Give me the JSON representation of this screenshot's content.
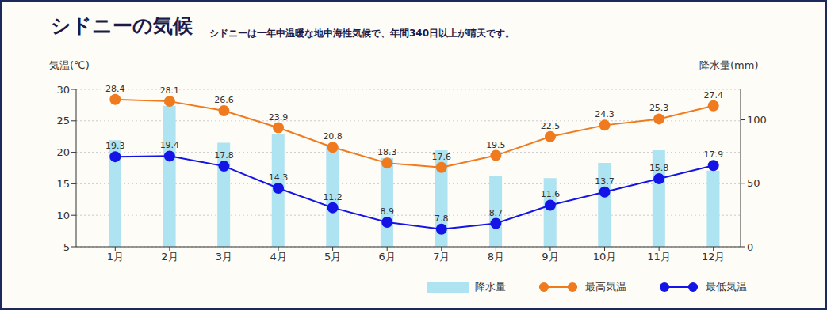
{
  "chart_data": {
    "type": "combo",
    "title": "シドニーの気候",
    "subtitle": "シドニーは一年中温暖な地中海性気候で、年間340日以上が晴天です。",
    "y_label": "気温(℃)",
    "y2_label": "降水量(mm)",
    "categories": [
      "1月",
      "2月",
      "3月",
      "4月",
      "5月",
      "6月",
      "7月",
      "8月",
      "9月",
      "10月",
      "11月",
      "12月"
    ],
    "series": [
      {
        "name": "降水量",
        "type": "bar",
        "axis": "y2",
        "color": "#aee3f2",
        "values": [
          84,
          111,
          82,
          89,
          79,
          70,
          76,
          56,
          54,
          66,
          76,
          60
        ]
      },
      {
        "name": "最高気温",
        "type": "line",
        "color": "#f07a1e",
        "marker": "circle",
        "data_labels": true,
        "values": [
          28.4,
          28.1,
          26.6,
          23.9,
          20.8,
          18.3,
          17.6,
          19.5,
          22.5,
          24.3,
          25.3,
          27.4
        ]
      },
      {
        "name": "最低気温",
        "type": "line",
        "color": "#1414e6",
        "marker": "circle",
        "data_labels": true,
        "values": [
          19.3,
          19.4,
          17.8,
          14.3,
          11.2,
          8.9,
          7.8,
          8.7,
          11.6,
          13.7,
          15.8,
          17.9
        ]
      }
    ],
    "ylim": [
      5,
      30
    ],
    "yticks": [
      5,
      10,
      15,
      20,
      25,
      30
    ],
    "y2lim": [
      0,
      124
    ],
    "y2ticks": [
      0,
      50,
      100
    ],
    "grid": true,
    "legend": "bottom right"
  }
}
